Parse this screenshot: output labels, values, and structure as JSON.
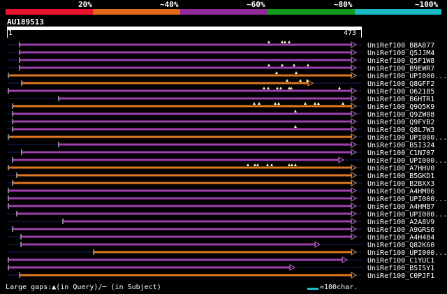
{
  "legend": {
    "segments": [
      {
        "color": "#e8142e"
      },
      {
        "color": "#e06818"
      },
      {
        "color": "#8f2c9a"
      },
      {
        "color": "#159a20"
      },
      {
        "color": "#18b8c4"
      }
    ],
    "labels": [
      "20%",
      "~40%",
      "~60%",
      "~80%",
      "~100%"
    ]
  },
  "query": {
    "name": "AU189513",
    "start": "1",
    "end": "473"
  },
  "colors": {
    "purple": "#a040b0",
    "orange": "#e07820",
    "dark": "#1a2260",
    "marker": "#ffffc0",
    "arrow": "#c070d0"
  },
  "hits": [
    {
      "label": "UniRef100_B8A877",
      "color": "purple",
      "start": 28,
      "end": 510,
      "markers": [
        385,
        404,
        408,
        414
      ]
    },
    {
      "label": "UniRef100_Q5JJM4",
      "color": "purple",
      "start": 28,
      "end": 510,
      "markers": []
    },
    {
      "label": "UniRef100_Q5F1W8",
      "color": "purple",
      "start": 28,
      "end": 510,
      "markers": []
    },
    {
      "label": "UniRef100_B9EWR7",
      "color": "purple",
      "start": 28,
      "end": 510,
      "markers": [
        385,
        404,
        421,
        441
      ]
    },
    {
      "label": "UniRef100_UPI000...",
      "color": "orange",
      "start": 12,
      "end": 510,
      "markers": [
        396,
        424
      ]
    },
    {
      "label": "UniRef100_Q8GFF2",
      "color": "orange",
      "start": 31,
      "end": 448,
      "markers": [
        411,
        430,
        440
      ]
    },
    {
      "label": "UniRef100_O62185",
      "color": "purple",
      "start": 12,
      "end": 510,
      "markers": [
        378,
        384,
        397,
        402,
        414,
        417,
        486
      ]
    },
    {
      "label": "UniRef100_B6HTR1",
      "color": "purple",
      "start": 84,
      "end": 510,
      "markers": []
    },
    {
      "label": "UniRef100_Q9Q5K9",
      "color": "orange",
      "start": 18,
      "end": 510,
      "markers": [
        364,
        371,
        394,
        399,
        437,
        451,
        456,
        491
      ]
    },
    {
      "label": "UniRef100_Q9ZW08",
      "color": "purple",
      "start": 18,
      "end": 510,
      "markers": [
        423
      ]
    },
    {
      "label": "UniRef100_Q9FYB2",
      "color": "purple",
      "start": 18,
      "end": 510,
      "markers": []
    },
    {
      "label": "UniRef100_Q8L7W3",
      "color": "purple",
      "start": 18,
      "end": 510,
      "markers": [
        423
      ]
    },
    {
      "label": "UniRef100_UPI000...",
      "color": "orange",
      "start": 12,
      "end": 510,
      "markers": []
    },
    {
      "label": "UniRef100_B5I324",
      "color": "purple",
      "start": 84,
      "end": 510,
      "markers": []
    },
    {
      "label": "UniRef100_C1N707",
      "color": "purple",
      "start": 31,
      "end": 510,
      "markers": []
    },
    {
      "label": "UniRef100_UPI000...",
      "color": "purple",
      "start": 18,
      "end": 492,
      "markers": []
    },
    {
      "label": "UniRef100_A7HHV0",
      "color": "orange",
      "start": 12,
      "end": 510,
      "markers": [
        355,
        365,
        369,
        383,
        389,
        414,
        418,
        423
      ]
    },
    {
      "label": "UniRef100_B5GKD1",
      "color": "orange",
      "start": 24,
      "end": 510,
      "markers": []
    },
    {
      "label": "UniRef100_B2BXX3",
      "color": "orange",
      "start": 18,
      "end": 510,
      "markers": []
    },
    {
      "label": "UniRef100_A4HM86",
      "color": "purple",
      "start": 12,
      "end": 510,
      "markers": []
    },
    {
      "label": "UniRef100_UPI000...",
      "color": "purple",
      "start": 12,
      "end": 510,
      "markers": []
    },
    {
      "label": "UniRef100_A4HM87",
      "color": "purple",
      "start": 12,
      "end": 510,
      "markers": []
    },
    {
      "label": "UniRef100_UPI000...",
      "color": "purple",
      "start": 24,
      "end": 510,
      "markers": []
    },
    {
      "label": "UniRef100_A2A8V9",
      "color": "purple",
      "start": 90,
      "end": 510,
      "markers": []
    },
    {
      "label": "UniRef100_A9GRS6",
      "color": "purple",
      "start": 18,
      "end": 510,
      "markers": []
    },
    {
      "label": "UniRef100_A4H484",
      "color": "purple",
      "start": 30,
      "end": 510,
      "markers": []
    },
    {
      "label": "UniRef100_Q82K60",
      "color": "purple",
      "start": 30,
      "end": 458,
      "markers": []
    },
    {
      "label": "UniRef100_UPI000...",
      "color": "orange",
      "start": 134,
      "end": 510,
      "markers": []
    },
    {
      "label": "UniRef100_C1YUC1",
      "color": "purple",
      "start": 12,
      "end": 497,
      "markers": []
    },
    {
      "label": "UniRef100_B5I5Y1",
      "color": "purple",
      "start": 12,
      "end": 422,
      "markers": []
    },
    {
      "label": "UniRef100_C0PJF1",
      "color": "orange",
      "start": 28,
      "end": 510,
      "markers": []
    }
  ],
  "footer": {
    "gaps_text": "Large gaps:▲(in Query)/─ (in Subject)",
    "key_text": "=100char."
  }
}
